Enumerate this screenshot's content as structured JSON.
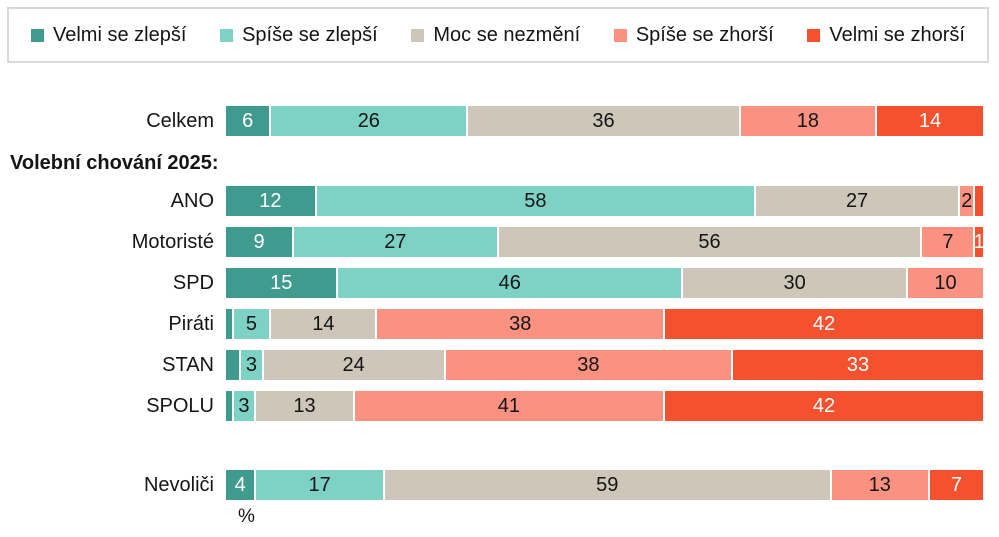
{
  "legend": {
    "items": [
      {
        "label": "Velmi se zlepší",
        "color": "#3f9b8e"
      },
      {
        "label": "Spíše se zlepší",
        "color": "#7dd2c5"
      },
      {
        "label": "Moc se nezmění",
        "color": "#cdc6b9"
      },
      {
        "label": "Spíše se zhorší",
        "color": "#fb9180"
      },
      {
        "label": "Velmi se zhorší",
        "color": "#f4512e"
      }
    ]
  },
  "chart_data": {
    "type": "bar",
    "stacked": true,
    "orientation": "horizontal",
    "unit": "%",
    "xlim": [
      0,
      100
    ],
    "legend_position": "top",
    "series_names": [
      "Velmi se zlepší",
      "Spíše se zlepší",
      "Moc se nezmění",
      "Spíše se zhorší",
      "Velmi se zhorší"
    ],
    "series_colors": [
      "#3f9b8e",
      "#7dd2c5",
      "#cdc6b9",
      "#fb9180",
      "#f4512e"
    ],
    "series_text_colors": [
      "#ffffff",
      "#151515",
      "#151515",
      "#151515",
      "#ffffff"
    ],
    "rows": [
      {
        "type": "bar",
        "label": "Celkem",
        "values": [
          6,
          26,
          36,
          18,
          14
        ],
        "value_labels": [
          "6",
          "26",
          "36",
          "18",
          "14"
        ]
      },
      {
        "type": "header",
        "label": "Volební chování 2025:"
      },
      {
        "type": "bar",
        "label": "ANO",
        "values": [
          12,
          58,
          27,
          2,
          1
        ],
        "value_labels": [
          "12",
          "58",
          "27",
          "2",
          ""
        ]
      },
      {
        "type": "bar",
        "label": "Motoristé",
        "values": [
          9,
          27,
          56,
          7,
          1
        ],
        "value_labels": [
          "9",
          "27",
          "56",
          "7",
          "1"
        ]
      },
      {
        "type": "bar",
        "label": "SPD",
        "values": [
          15,
          46,
          30,
          10,
          0
        ],
        "value_labels": [
          "15",
          "46",
          "30",
          "10",
          ""
        ]
      },
      {
        "type": "bar",
        "label": "Piráti",
        "values": [
          1,
          5,
          14,
          38,
          42
        ],
        "value_labels": [
          "",
          "5",
          "14",
          "38",
          "42"
        ]
      },
      {
        "type": "bar",
        "label": "STAN",
        "values": [
          2,
          3,
          24,
          38,
          33
        ],
        "value_labels": [
          "",
          "3",
          "24",
          "38",
          "33"
        ]
      },
      {
        "type": "bar",
        "label": "SPOLU",
        "values": [
          1,
          3,
          13,
          41,
          42
        ],
        "value_labels": [
          "",
          "3",
          "13",
          "41",
          "42"
        ]
      },
      {
        "type": "gap"
      },
      {
        "type": "bar",
        "label": "Nevoliči",
        "values": [
          4,
          17,
          59,
          13,
          7
        ],
        "value_labels": [
          "4",
          "17",
          "59",
          "13",
          "7"
        ]
      },
      {
        "type": "footer",
        "label": "%"
      }
    ]
  }
}
